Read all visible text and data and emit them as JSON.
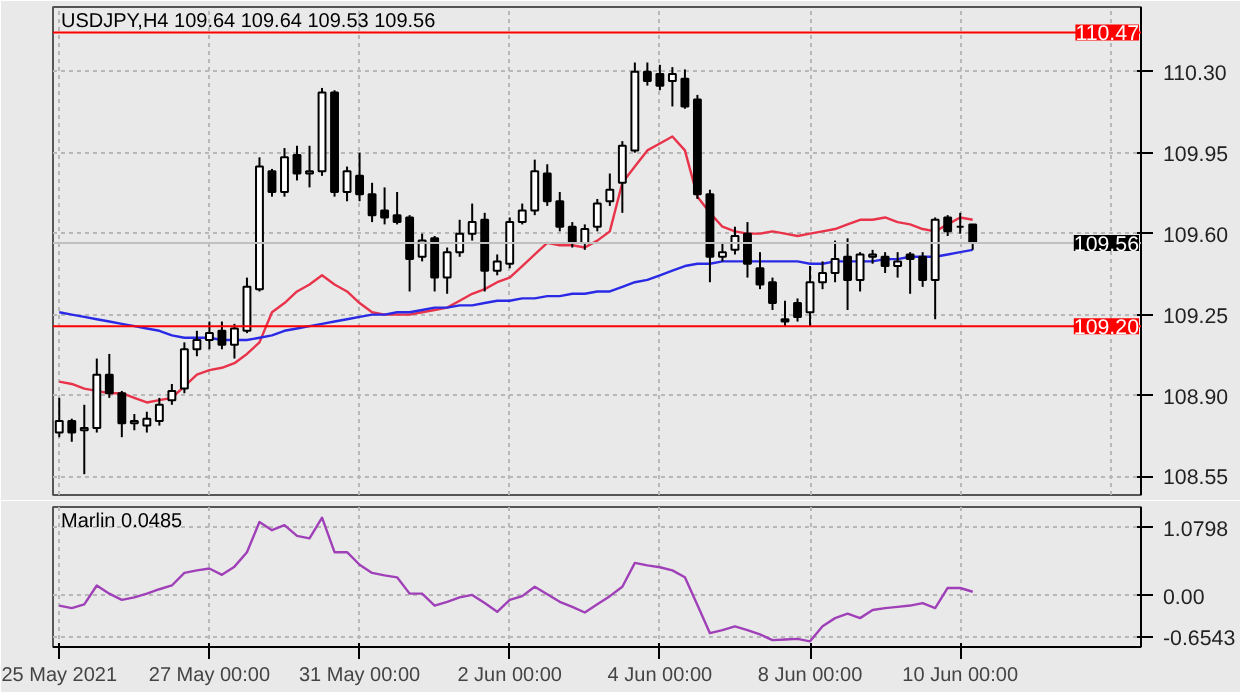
{
  "chart_data": [
    {
      "type": "candlestick",
      "title": "USDJPY,H4  109.64 109.64 109.53 109.56",
      "categories": [
        null,
        null,
        null,
        null,
        null,
        null,
        null,
        null,
        null,
        null,
        null,
        null,
        null,
        null,
        null,
        null,
        null,
        null,
        null,
        null,
        null,
        null,
        null,
        null,
        null,
        null,
        null,
        null,
        null,
        null,
        null,
        null,
        null,
        null,
        null,
        null,
        null,
        null,
        null,
        null,
        null,
        null,
        null,
        null,
        null,
        null,
        null,
        null,
        null,
        null,
        null,
        null,
        null,
        null,
        null,
        null,
        null,
        null,
        null,
        null,
        null,
        null,
        null,
        null,
        null,
        null,
        null,
        null,
        null,
        null,
        null,
        null,
        null,
        null
      ],
      "ohlc": [
        [
          108.74,
          108.89,
          108.72,
          108.79
        ],
        [
          108.79,
          108.8,
          108.7,
          108.74
        ],
        [
          108.75,
          108.86,
          108.56,
          108.76
        ],
        [
          108.76,
          109.06,
          108.74,
          108.99
        ],
        [
          108.99,
          109.08,
          108.89,
          108.91
        ],
        [
          108.91,
          108.92,
          108.72,
          108.78
        ],
        [
          108.78,
          108.82,
          108.75,
          108.79
        ],
        [
          108.77,
          108.83,
          108.74,
          108.8
        ],
        [
          108.79,
          108.89,
          108.77,
          108.86
        ],
        [
          108.88,
          108.95,
          108.86,
          108.92
        ],
        [
          108.93,
          109.13,
          108.91,
          109.1
        ],
        [
          109.1,
          109.18,
          109.07,
          109.14
        ],
        [
          109.14,
          109.22,
          109.1,
          109.17
        ],
        [
          109.18,
          109.22,
          109.1,
          109.12
        ],
        [
          109.12,
          109.21,
          109.06,
          109.19
        ],
        [
          109.18,
          109.41,
          109.17,
          109.37
        ],
        [
          109.36,
          109.93,
          109.35,
          109.89
        ],
        [
          109.87,
          109.88,
          109.76,
          109.78
        ],
        [
          109.78,
          109.97,
          109.76,
          109.93
        ],
        [
          109.94,
          109.98,
          109.83,
          109.86
        ],
        [
          109.86,
          109.98,
          109.8,
          109.87
        ],
        [
          109.87,
          110.23,
          109.85,
          110.21
        ],
        [
          110.21,
          110.22,
          109.76,
          109.78
        ],
        [
          109.78,
          109.89,
          109.74,
          109.87
        ],
        [
          109.85,
          109.95,
          109.74,
          109.77
        ],
        [
          109.77,
          109.82,
          109.65,
          109.68
        ],
        [
          109.7,
          109.8,
          109.64,
          109.67
        ],
        [
          109.68,
          109.78,
          109.64,
          109.65
        ],
        [
          109.67,
          109.68,
          109.35,
          109.49
        ],
        [
          109.5,
          109.6,
          109.48,
          109.57
        ],
        [
          109.58,
          109.59,
          109.35,
          109.41
        ],
        [
          109.41,
          109.54,
          109.34,
          109.52
        ],
        [
          109.52,
          109.66,
          109.5,
          109.6
        ],
        [
          109.6,
          109.73,
          109.57,
          109.65
        ],
        [
          109.66,
          109.69,
          109.35,
          109.44
        ],
        [
          109.44,
          109.51,
          109.42,
          109.48
        ],
        [
          109.47,
          109.67,
          109.45,
          109.65
        ],
        [
          109.65,
          109.73,
          109.64,
          109.7
        ],
        [
          109.7,
          109.92,
          109.68,
          109.87
        ],
        [
          109.86,
          109.9,
          109.72,
          109.74
        ],
        [
          109.74,
          109.78,
          109.61,
          109.63
        ],
        [
          109.63,
          109.65,
          109.54,
          109.56
        ],
        [
          109.56,
          109.64,
          109.53,
          109.62
        ],
        [
          109.63,
          109.75,
          109.61,
          109.73
        ],
        [
          109.74,
          109.86,
          109.72,
          109.79
        ],
        [
          109.82,
          110.0,
          109.69,
          109.98
        ],
        [
          109.96,
          110.34,
          109.95,
          110.3
        ],
        [
          110.3,
          110.34,
          110.24,
          110.26
        ],
        [
          110.29,
          110.33,
          110.22,
          110.24
        ],
        [
          110.26,
          110.32,
          110.15,
          110.29
        ],
        [
          110.27,
          110.31,
          110.14,
          110.15
        ],
        [
          110.18,
          110.2,
          109.75,
          109.77
        ],
        [
          109.77,
          109.79,
          109.39,
          109.5
        ],
        [
          109.5,
          109.56,
          109.48,
          109.52
        ],
        [
          109.53,
          109.63,
          109.51,
          109.59
        ],
        [
          109.6,
          109.65,
          109.41,
          109.47
        ],
        [
          109.45,
          109.52,
          109.36,
          109.38
        ],
        [
          109.39,
          109.41,
          109.27,
          109.3
        ],
        [
          109.23,
          109.31,
          109.2,
          109.22
        ],
        [
          109.3,
          109.32,
          109.22,
          109.24
        ],
        [
          109.26,
          109.46,
          109.2,
          109.39
        ],
        [
          109.39,
          109.48,
          109.36,
          109.43
        ],
        [
          109.43,
          109.57,
          109.39,
          109.49
        ],
        [
          109.5,
          109.58,
          109.27,
          109.4
        ],
        [
          109.4,
          109.52,
          109.35,
          109.51
        ],
        [
          109.5,
          109.53,
          109.47,
          109.51
        ],
        [
          109.5,
          109.52,
          109.43,
          109.46
        ],
        [
          109.46,
          109.52,
          109.41,
          109.48
        ],
        [
          109.51,
          109.52,
          109.34,
          109.49
        ],
        [
          109.5,
          109.52,
          109.37,
          109.4
        ],
        [
          109.4,
          109.67,
          109.23,
          109.66
        ],
        [
          109.67,
          109.68,
          109.59,
          109.61
        ],
        [
          109.63,
          109.69,
          109.6,
          109.63
        ],
        [
          109.64,
          109.64,
          109.53,
          109.56
        ]
      ],
      "series": [
        {
          "type": "line",
          "color": "#e8334a",
          "values": [
            108.96,
            108.95,
            108.93,
            108.92,
            108.91,
            108.91,
            108.89,
            108.87,
            108.88,
            108.89,
            108.94,
            108.99,
            109.01,
            109.02,
            109.04,
            109.08,
            109.13,
            109.26,
            109.3,
            109.35,
            109.38,
            109.42,
            109.38,
            109.35,
            109.3,
            109.26,
            109.25,
            109.25,
            109.25,
            109.26,
            109.27,
            109.28,
            109.31,
            109.34,
            109.36,
            109.39,
            109.41,
            109.46,
            109.51,
            109.56,
            109.55,
            109.55,
            109.54,
            109.57,
            109.61,
            109.82,
            109.89,
            109.96,
            109.99,
            110.02,
            109.96,
            109.76,
            109.69,
            109.63,
            109.61,
            109.6,
            109.6,
            109.61,
            109.6,
            109.59,
            109.6,
            109.61,
            109.62,
            109.64,
            109.66,
            109.66,
            109.67,
            109.65,
            109.64,
            109.62,
            109.61,
            109.64,
            109.67,
            109.66
          ]
        },
        {
          "type": "line",
          "color": "#2a2ae6",
          "values": [
            109.26,
            109.25,
            109.24,
            109.23,
            109.22,
            109.21,
            109.2,
            109.19,
            109.18,
            109.16,
            109.15,
            109.15,
            109.15,
            109.14,
            109.14,
            109.14,
            109.15,
            109.16,
            109.18,
            109.19,
            109.2,
            109.21,
            109.22,
            109.23,
            109.24,
            109.25,
            109.25,
            109.26,
            109.26,
            109.27,
            109.28,
            109.28,
            109.29,
            109.29,
            109.3,
            109.31,
            109.31,
            109.32,
            109.32,
            109.33,
            109.33,
            109.34,
            109.34,
            109.35,
            109.35,
            109.37,
            109.39,
            109.4,
            109.42,
            109.44,
            109.46,
            109.47,
            109.47,
            109.48,
            109.48,
            109.48,
            109.48,
            109.48,
            109.48,
            109.48,
            109.47,
            109.47,
            109.48,
            109.48,
            109.48,
            109.48,
            109.49,
            109.49,
            109.5,
            109.5,
            109.5,
            109.51,
            109.52,
            109.53
          ]
        }
      ],
      "ref_lines": [
        {
          "axis": "y",
          "value": 110.47,
          "label": "110.47",
          "color": "#ff0000"
        },
        {
          "axis": "y",
          "value": 109.2,
          "label": "109.20",
          "color": "#ff0000"
        },
        {
          "axis": "y",
          "value": 109.56,
          "label": "109.56",
          "color": "#c0c0c0"
        }
      ],
      "ylim": [
        108.47,
        110.58
      ],
      "yticks": [
        108.55,
        {
          "value": 108.9,
          "label": "108.90"
        },
        109.25,
        {
          "value": 109.6,
          "label": "109.60"
        },
        109.95,
        {
          "value": 110.3,
          "label": "110.30"
        }
      ],
      "tick_labels": "y",
      "grid": true
    },
    {
      "type": "line",
      "title": "Marlin 0.0485",
      "categories": [
        "25 May 2021",
        null,
        null,
        null,
        null,
        null,
        null,
        null,
        null,
        null,
        null,
        null,
        "27 May 00:00",
        null,
        null,
        null,
        null,
        null,
        null,
        null,
        null,
        null,
        null,
        null,
        "31 May 00:00",
        null,
        null,
        null,
        null,
        null,
        null,
        null,
        null,
        null,
        null,
        null,
        "2 Jun 00:00",
        null,
        null,
        null,
        null,
        null,
        null,
        null,
        null,
        null,
        null,
        null,
        "4 Jun 00:00",
        null,
        null,
        null,
        null,
        null,
        null,
        null,
        null,
        null,
        null,
        null,
        "8 Jun 00:00",
        null,
        null,
        null,
        null,
        null,
        null,
        null,
        null,
        null,
        null,
        null,
        "10 Jun 00:00",
        null
      ],
      "series": [
        {
          "color": "#a040b8",
          "values": [
            -0.16,
            -0.2,
            -0.14,
            0.16,
            0.03,
            -0.07,
            -0.03,
            0.03,
            0.1,
            0.16,
            0.36,
            0.4,
            0.43,
            0.33,
            0.46,
            0.69,
            1.17,
            1.04,
            1.12,
            0.95,
            0.91,
            1.24,
            0.69,
            0.69,
            0.49,
            0.36,
            0.32,
            0.29,
            0.03,
            0.03,
            -0.16,
            -0.1,
            -0.03,
            0.01,
            -0.12,
            -0.26,
            -0.07,
            -0.01,
            0.14,
            0.02,
            -0.1,
            -0.18,
            -0.27,
            -0.14,
            -0.01,
            0.14,
            0.52,
            0.48,
            0.45,
            0.4,
            0.29,
            -0.15,
            -0.6,
            -0.55,
            -0.49,
            -0.55,
            -0.62,
            -0.71,
            -0.7,
            -0.69,
            -0.73,
            -0.49,
            -0.36,
            -0.29,
            -0.36,
            -0.23,
            -0.2,
            -0.18,
            -0.16,
            -0.12,
            -0.2,
            0.12,
            0.12,
            0.06
          ]
        }
      ],
      "ylim": [
        -0.82,
        1.41
      ],
      "yticks": [
        {
          "value": 1.0798,
          "label": "1.0798"
        },
        {
          "value": 0,
          "label": "0.00"
        },
        {
          "value": -0.6543,
          "label": "-0.6543"
        }
      ],
      "grid": true
    }
  ]
}
